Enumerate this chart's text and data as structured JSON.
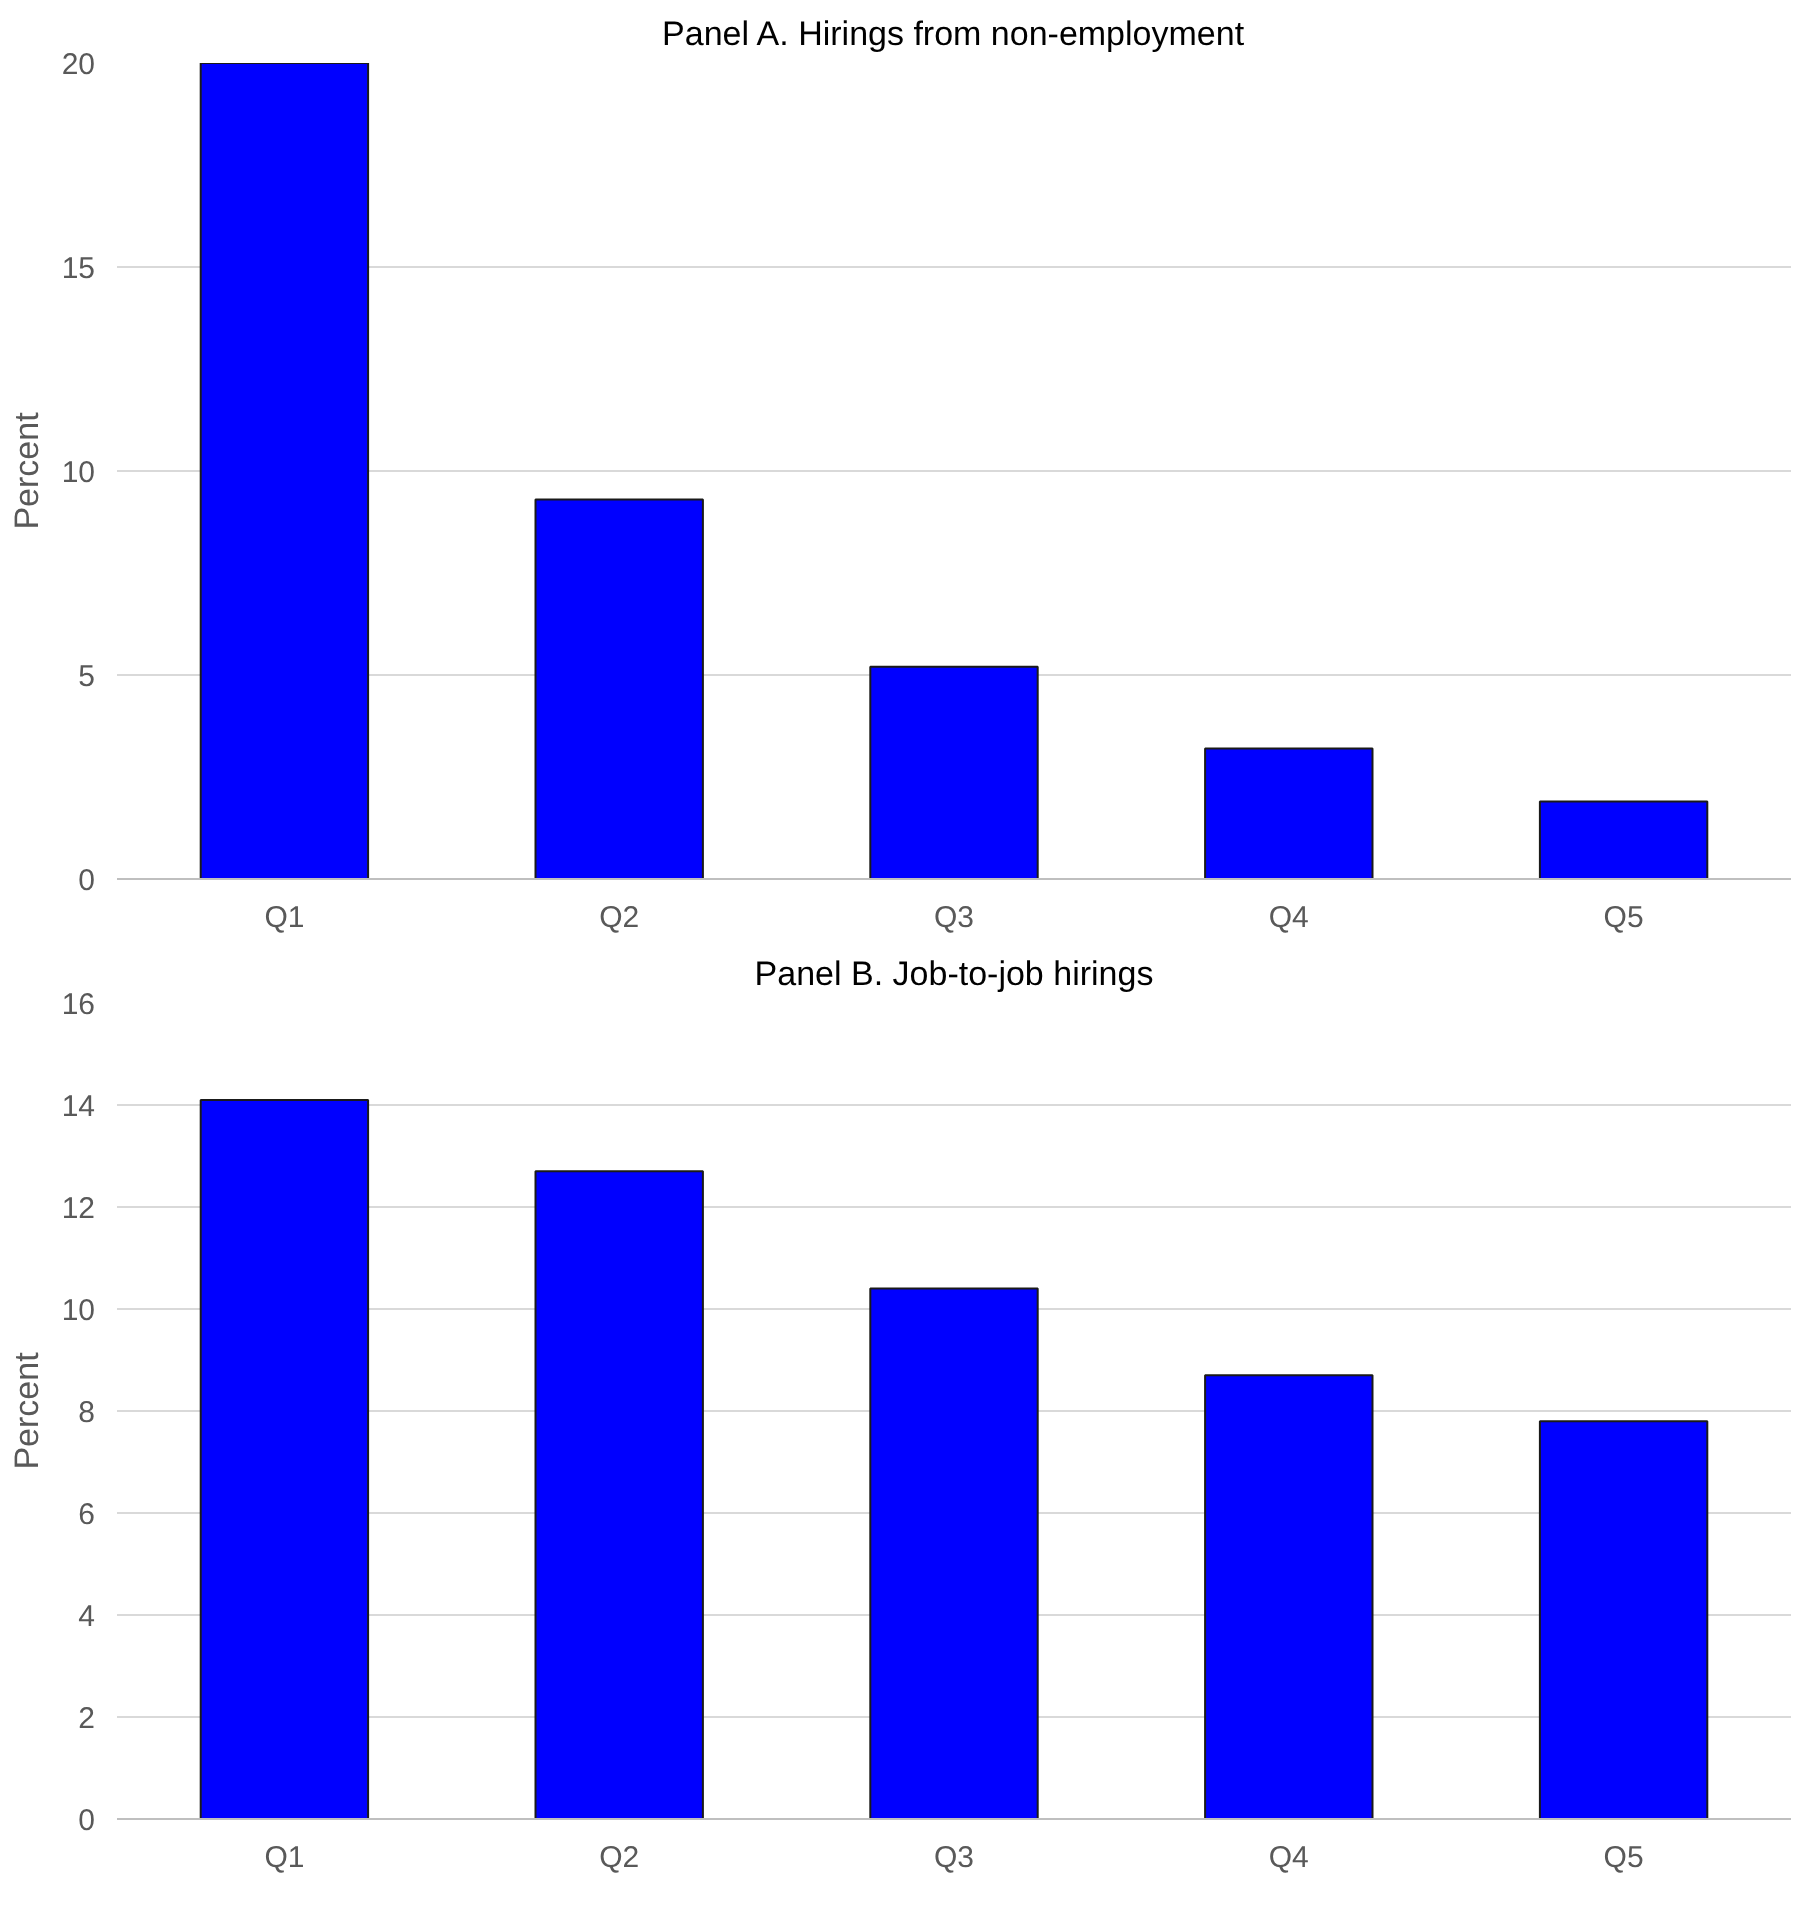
{
  "chart_data": [
    {
      "type": "bar",
      "title": "Panel A. Hirings from non-employment",
      "ylabel": "Percent",
      "categories": [
        "Q1",
        "Q2",
        "Q3",
        "Q4",
        "Q5"
      ],
      "values": [
        20.0,
        9.3,
        5.2,
        3.2,
        1.9
      ],
      "color": "#0000ff",
      "ylim": [
        0,
        20
      ],
      "yticks": [
        0,
        5,
        10,
        15,
        20
      ],
      "grid": "y"
    },
    {
      "type": "bar",
      "title": "Panel B. Job-to-job hirings",
      "ylabel": "Percent",
      "categories": [
        "Q1",
        "Q2",
        "Q3",
        "Q4",
        "Q5"
      ],
      "values": [
        14.1,
        12.7,
        10.4,
        8.7,
        7.8
      ],
      "color": "#0000ff",
      "ylim": [
        0,
        16
      ],
      "yticks": [
        0,
        2,
        4,
        6,
        8,
        10,
        12,
        14,
        16
      ],
      "grid": "y"
    }
  ]
}
